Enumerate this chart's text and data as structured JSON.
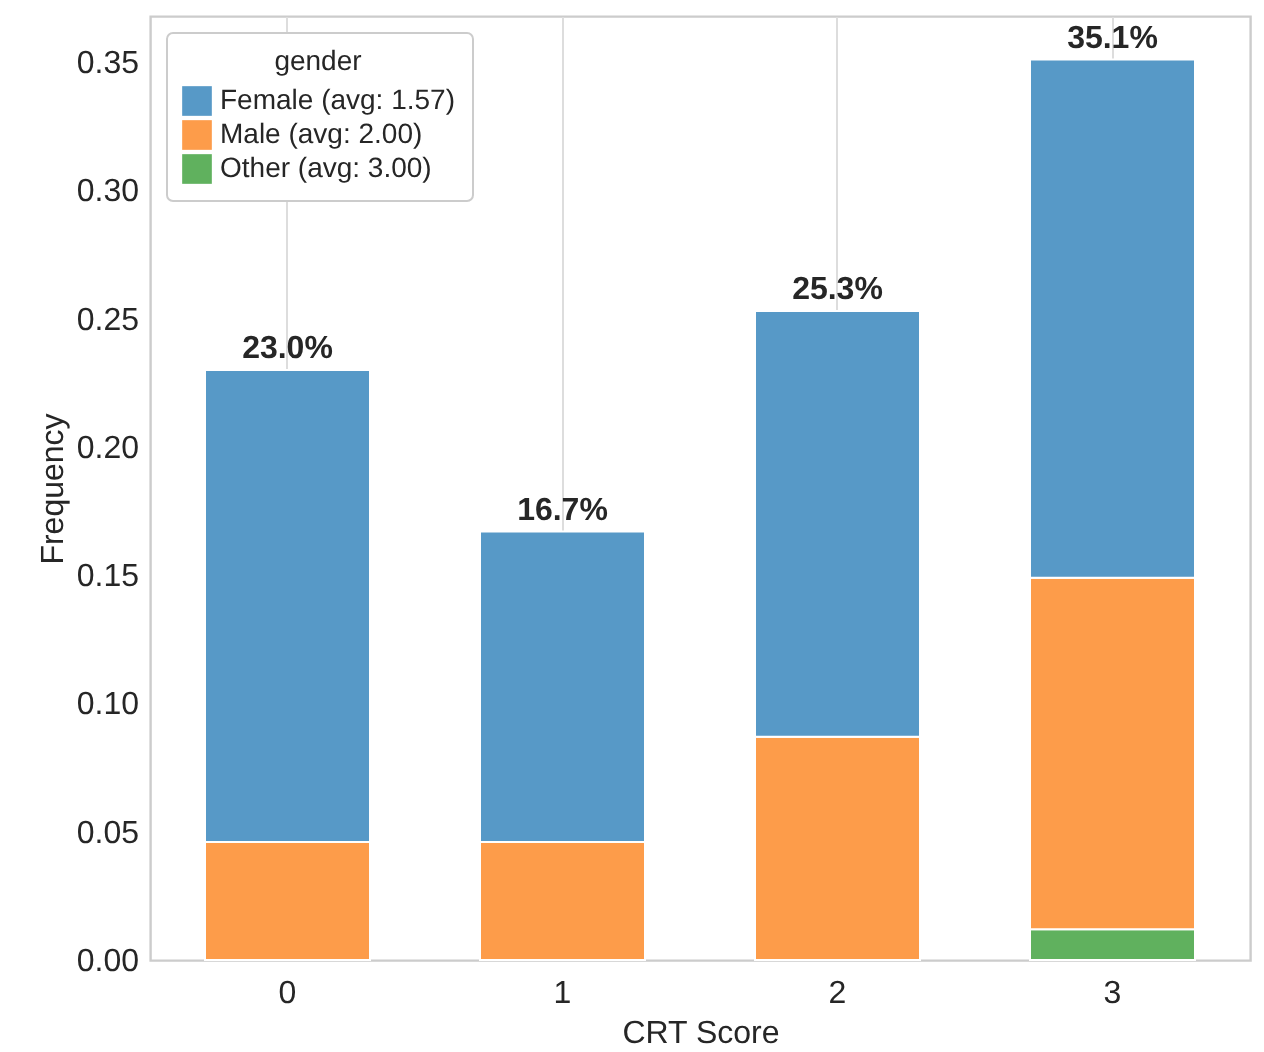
{
  "chart_data": {
    "type": "bar",
    "stacked": true,
    "categories": [
      "0",
      "1",
      "2",
      "3"
    ],
    "series": [
      {
        "name": "Other (avg: 3.00)",
        "color": "#60b15e",
        "values": [
          null,
          null,
          null,
          0.012
        ]
      },
      {
        "name": "Male (avg: 2.00)",
        "color": "#fd9c4a",
        "values": [
          0.046,
          0.046,
          0.087,
          0.137
        ]
      },
      {
        "name": "Female (avg: 1.57)",
        "color": "#5799c7",
        "values": [
          0.184,
          0.121,
          0.166,
          0.202
        ]
      }
    ],
    "totals": [
      "23.0%",
      "16.7%",
      "25.3%",
      "35.1%"
    ],
    "xlabel": "CRT Score",
    "ylabel": "Frequency",
    "legend_title": "gender",
    "ylim": [
      0,
      0.368
    ],
    "yticks": [
      {
        "value": 0,
        "label": "0.00"
      },
      0.05,
      {
        "value": 0.1,
        "label": "0.10"
      },
      0.15,
      {
        "value": 0.2,
        "label": "0.20"
      },
      0.25,
      {
        "value": 0.3,
        "label": "0.30"
      },
      0.35
    ],
    "grid": "x",
    "legend": "top left"
  }
}
